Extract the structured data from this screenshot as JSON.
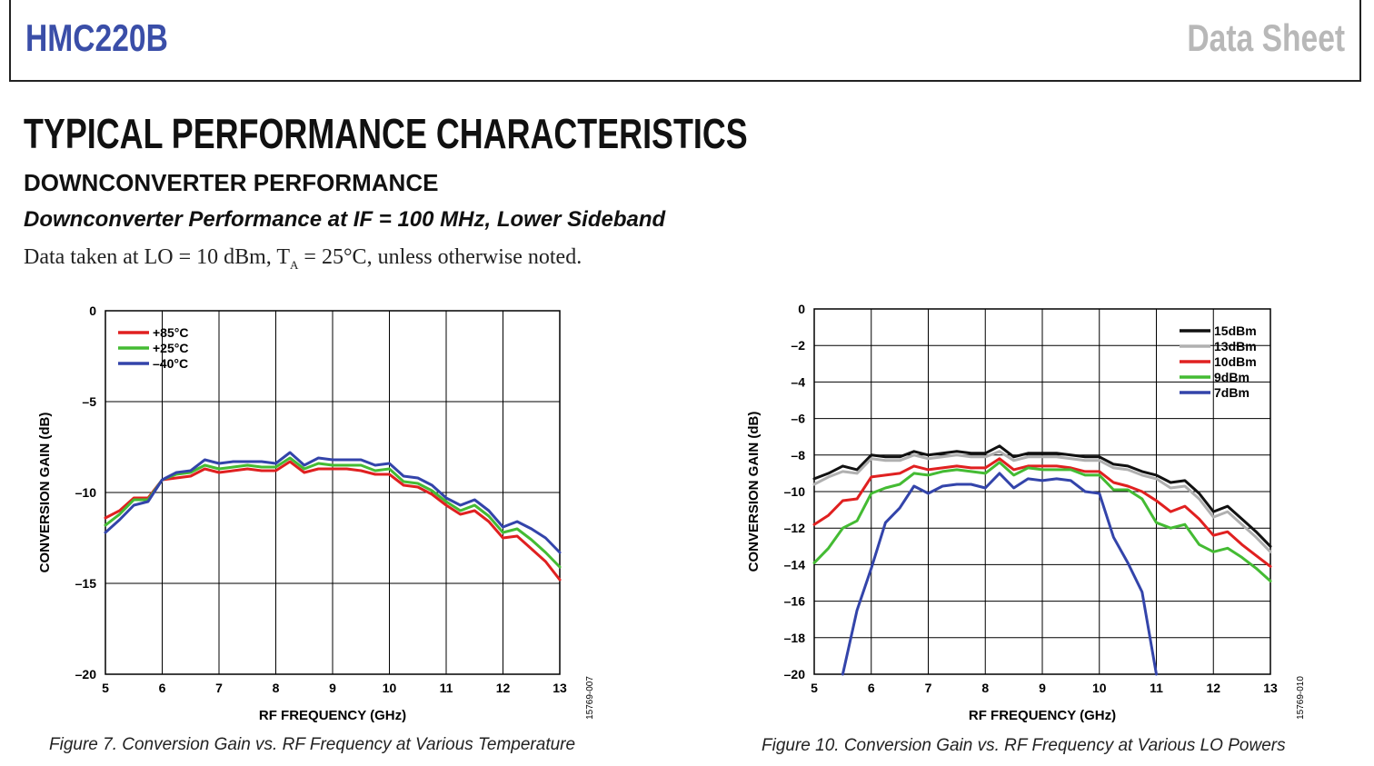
{
  "header": {
    "part_number": "HMC220B",
    "doc_type": "Data Sheet",
    "part_color": "#3a4ea8",
    "doc_type_color": "#b8b8b8"
  },
  "section": {
    "title": "TYPICAL PERFORMANCE CHARACTERISTICS",
    "subtitle": "DOWNCONVERTER PERFORMANCE",
    "subsubtitle": "Downconverter Performance at IF = 100 MHz, Lower Sideband",
    "note_prefix": "Data taken at LO = 10 dBm, T",
    "note_sub": "A",
    "note_suffix": " = 25°C, unless otherwise noted."
  },
  "chart_data": [
    {
      "type": "line",
      "caption": "Figure 7. Conversion Gain vs. RF Frequency at Various Temperature",
      "figure_id": "15769-007",
      "xlabel": "RF FREQUENCY (GHz)",
      "ylabel": "CONVERSION GAIN (dB)",
      "xlim": [
        5,
        13
      ],
      "ylim": [
        -20,
        0
      ],
      "xticks": [
        "5",
        "6",
        "7",
        "8",
        "9",
        "10",
        "11",
        "12",
        "13"
      ],
      "yticks": [
        "0",
        "–5",
        "–10",
        "–15",
        "–20"
      ],
      "grid": true,
      "legend_position": "top-left",
      "x": [
        5,
        5.25,
        5.5,
        5.75,
        6,
        6.25,
        6.5,
        6.75,
        7,
        7.25,
        7.5,
        7.75,
        8,
        8.25,
        8.5,
        8.75,
        9,
        9.25,
        9.5,
        9.75,
        10,
        10.25,
        10.5,
        10.75,
        11,
        11.25,
        11.5,
        11.75,
        12,
        12.25,
        12.5,
        12.75,
        13
      ],
      "series": [
        {
          "name": "+85°C",
          "color": "#e02020",
          "values": [
            -11.4,
            -11.0,
            -10.3,
            -10.3,
            -9.3,
            -9.2,
            -9.1,
            -8.7,
            -8.9,
            -8.8,
            -8.7,
            -8.8,
            -8.8,
            -8.3,
            -8.9,
            -8.7,
            -8.7,
            -8.7,
            -8.8,
            -9.0,
            -9.0,
            -9.6,
            -9.7,
            -10.1,
            -10.7,
            -11.2,
            -11.0,
            -11.6,
            -12.5,
            -12.4,
            -13.1,
            -13.8,
            -14.8
          ]
        },
        {
          "name": "+25°C",
          "color": "#44bb33",
          "values": [
            -11.8,
            -11.2,
            -10.4,
            -10.4,
            -9.3,
            -9.0,
            -8.9,
            -8.5,
            -8.7,
            -8.6,
            -8.5,
            -8.6,
            -8.6,
            -8.1,
            -8.7,
            -8.4,
            -8.5,
            -8.5,
            -8.5,
            -8.8,
            -8.7,
            -9.4,
            -9.5,
            -9.9,
            -10.5,
            -11.0,
            -10.7,
            -11.3,
            -12.2,
            -12.0,
            -12.6,
            -13.3,
            -14.1
          ]
        },
        {
          "name": "–40°C",
          "color": "#3344aa",
          "values": [
            -12.2,
            -11.5,
            -10.7,
            -10.5,
            -9.3,
            -8.9,
            -8.8,
            -8.2,
            -8.4,
            -8.3,
            -8.3,
            -8.3,
            -8.4,
            -7.8,
            -8.5,
            -8.1,
            -8.2,
            -8.2,
            -8.2,
            -8.5,
            -8.4,
            -9.1,
            -9.2,
            -9.6,
            -10.3,
            -10.7,
            -10.4,
            -11.0,
            -11.9,
            -11.6,
            -12.0,
            -12.5,
            -13.3
          ]
        }
      ]
    },
    {
      "type": "line",
      "caption": "Figure 10. Conversion Gain vs. RF Frequency at Various LO Powers",
      "figure_id": "15769-010",
      "xlabel": "RF FREQUENCY (GHz)",
      "ylabel": "CONVERSION GAIN (dB)",
      "xlim": [
        5,
        13
      ],
      "ylim": [
        -20,
        0
      ],
      "xticks": [
        "5",
        "6",
        "7",
        "8",
        "9",
        "10",
        "11",
        "12",
        "13"
      ],
      "yticks": [
        "0",
        "–2",
        "–4",
        "–6",
        "–8",
        "–10",
        "–12",
        "–14",
        "–16",
        "–18",
        "–20"
      ],
      "grid": true,
      "legend_position": "top-right",
      "x": [
        5,
        5.25,
        5.5,
        5.75,
        6,
        6.25,
        6.5,
        6.75,
        7,
        7.25,
        7.5,
        7.75,
        8,
        8.25,
        8.5,
        8.75,
        9,
        9.25,
        9.5,
        9.75,
        10,
        10.25,
        10.5,
        10.75,
        11,
        11.25,
        11.5,
        11.75,
        12,
        12.25,
        12.5,
        12.75,
        13
      ],
      "series": [
        {
          "name": "15dBm",
          "color": "#111111",
          "values": [
            -9.3,
            -9.0,
            -8.6,
            -8.8,
            -8.0,
            -8.1,
            -8.1,
            -7.8,
            -8.0,
            -7.9,
            -7.8,
            -7.9,
            -7.9,
            -7.5,
            -8.1,
            -7.9,
            -7.9,
            -7.9,
            -8.0,
            -8.1,
            -8.1,
            -8.5,
            -8.6,
            -8.9,
            -9.1,
            -9.5,
            -9.4,
            -10.1,
            -11.1,
            -10.8,
            -11.5,
            -12.2,
            -13.0
          ]
        },
        {
          "name": "13dBm",
          "color": "#b0b0b0",
          "values": [
            -9.6,
            -9.2,
            -8.9,
            -9.0,
            -8.2,
            -8.3,
            -8.3,
            -8.0,
            -8.2,
            -8.1,
            -8.0,
            -8.1,
            -8.1,
            -7.8,
            -8.3,
            -8.1,
            -8.1,
            -8.1,
            -8.2,
            -8.3,
            -8.3,
            -8.7,
            -8.8,
            -9.1,
            -9.3,
            -9.8,
            -9.7,
            -10.4,
            -11.4,
            -11.1,
            -11.8,
            -12.5,
            -13.3
          ]
        },
        {
          "name": "10dBm",
          "color": "#e02020",
          "values": [
            -11.8,
            -11.3,
            -10.5,
            -10.4,
            -9.2,
            -9.1,
            -9.0,
            -8.6,
            -8.8,
            -8.7,
            -8.6,
            -8.7,
            -8.7,
            -8.2,
            -8.8,
            -8.6,
            -8.6,
            -8.6,
            -8.7,
            -8.9,
            -8.9,
            -9.5,
            -9.7,
            -10.0,
            -10.5,
            -11.1,
            -10.8,
            -11.5,
            -12.4,
            -12.2,
            -12.9,
            -13.5,
            -14.1
          ]
        },
        {
          "name": "9dBm",
          "color": "#44bb33",
          "values": [
            -13.9,
            -13.1,
            -12.0,
            -11.6,
            -10.1,
            -9.8,
            -9.6,
            -9.0,
            -9.1,
            -8.9,
            -8.8,
            -8.9,
            -9.0,
            -8.4,
            -9.1,
            -8.7,
            -8.8,
            -8.8,
            -8.8,
            -9.1,
            -9.1,
            -9.9,
            -9.9,
            -10.4,
            -11.7,
            -12.0,
            -11.8,
            -12.9,
            -13.3,
            -13.1,
            -13.6,
            -14.2,
            -14.9
          ]
        },
        {
          "name": "7dBm",
          "color": "#3344aa",
          "values": [
            null,
            null,
            -20.0,
            -16.5,
            -14.2,
            -11.7,
            -10.9,
            -9.7,
            -10.1,
            -9.7,
            -9.6,
            -9.6,
            -9.8,
            -9.0,
            -9.8,
            -9.3,
            -9.4,
            -9.3,
            -9.4,
            -10.0,
            -10.1,
            -12.5,
            -13.9,
            -15.5,
            -20.0,
            null,
            null,
            null,
            null,
            null,
            null,
            null,
            null
          ]
        }
      ]
    }
  ]
}
